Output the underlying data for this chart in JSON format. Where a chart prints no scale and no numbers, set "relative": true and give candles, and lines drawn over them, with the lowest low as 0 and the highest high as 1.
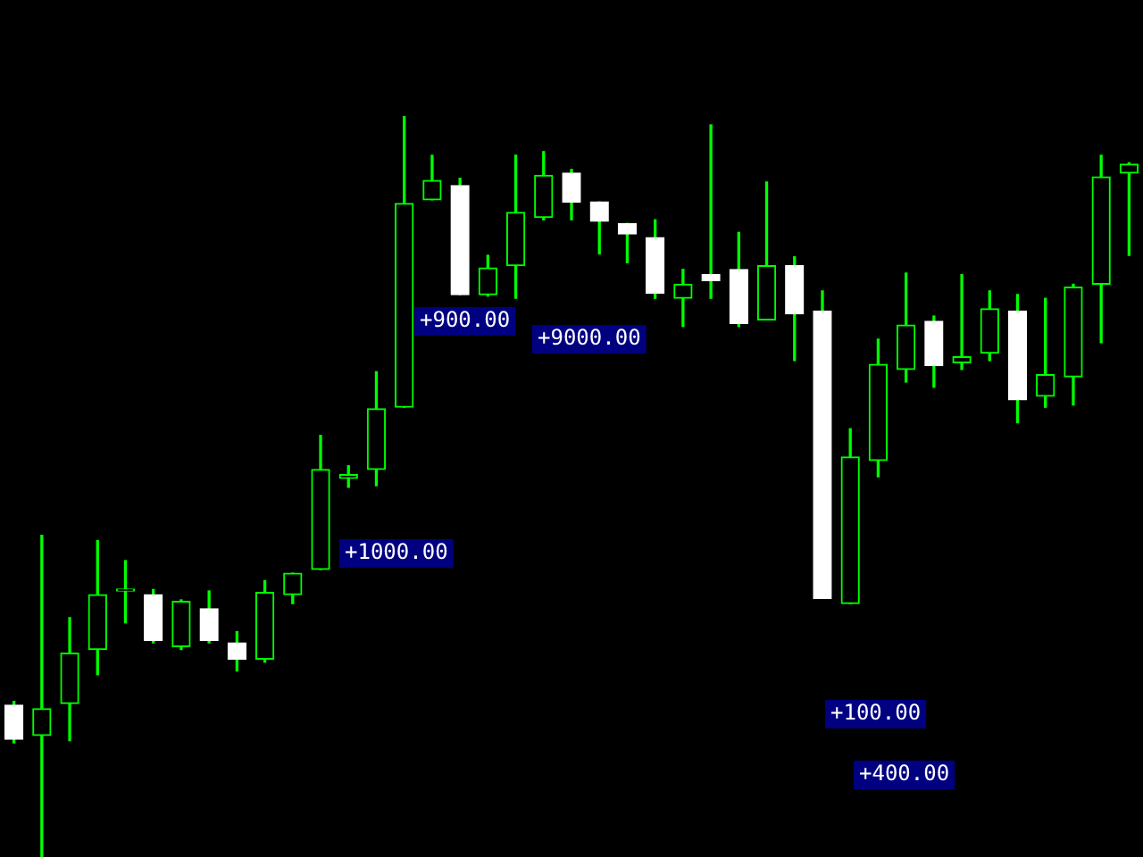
{
  "chart_data": {
    "type": "candlestick",
    "relative": true,
    "color": "#00ff00",
    "categories": [
      null,
      null,
      null,
      null,
      null,
      null,
      null,
      null,
      null,
      null,
      null,
      null,
      null,
      null,
      null,
      null,
      null,
      null,
      null,
      null,
      null,
      null,
      null,
      null,
      null,
      null,
      null,
      null,
      null,
      null,
      null,
      null,
      null,
      null,
      null,
      null,
      null,
      null,
      null,
      null,
      null
    ],
    "ohlc": [
      [
        0.205,
        0.21,
        0.154,
        0.159
      ],
      [
        0.164,
        0.434,
        0,
        0.2
      ],
      [
        0.207,
        0.323,
        0.157,
        0.275
      ],
      [
        0.28,
        0.427,
        0.246,
        0.354
      ],
      [
        0.359,
        0.4,
        0.316,
        0.359
      ],
      [
        0.354,
        0.361,
        0.289,
        0.292
      ],
      [
        0.284,
        0.347,
        0.28,
        0.345
      ],
      [
        0.335,
        0.359,
        0.289,
        0.292
      ],
      [
        0.289,
        0.304,
        0.251,
        0.267
      ],
      [
        0.267,
        0.373,
        0.263,
        0.357
      ],
      [
        0.354,
        0.383,
        0.342,
        0.383
      ],
      [
        0.388,
        0.569,
        0.388,
        0.523
      ],
      [
        0.511,
        0.528,
        0.499,
        0.516
      ],
      [
        0.523,
        0.655,
        0.501,
        0.605
      ],
      [
        0.607,
        1,
        0.607,
        0.882
      ],
      [
        0.887,
        0.947,
        0.887,
        0.913
      ],
      [
        0.906,
        0.916,
        0.759,
        0.759
      ],
      [
        0.759,
        0.812,
        0.757,
        0.795
      ],
      [
        0.798,
        0.947,
        0.754,
        0.87
      ],
      [
        0.863,
        0.952,
        0.86,
        0.92
      ],
      [
        0.923,
        0.928,
        0.86,
        0.884
      ],
      [
        0.884,
        0.884,
        0.814,
        0.858
      ],
      [
        0.855,
        0.855,
        0.802,
        0.841
      ],
      [
        0.836,
        0.86,
        0.754,
        0.761
      ],
      [
        0.754,
        0.793,
        0.716,
        0.773
      ],
      [
        0.786,
        0.988,
        0.754,
        0.778
      ],
      [
        0.793,
        0.843,
        0.716,
        0.72
      ],
      [
        0.725,
        0.911,
        0.725,
        0.798
      ],
      [
        0.798,
        0.81,
        0.67,
        0.733
      ],
      [
        0.737,
        0.764,
        0.349,
        0.349
      ],
      [
        0.342,
        0.578,
        0.342,
        0.54
      ],
      [
        0.535,
        0.699,
        0.513,
        0.665
      ],
      [
        0.658,
        0.788,
        0.641,
        0.718
      ],
      [
        0.723,
        0.73,
        0.634,
        0.663
      ],
      [
        0.667,
        0.786,
        0.658,
        0.675
      ],
      [
        0.68,
        0.764,
        0.67,
        0.74
      ],
      [
        0.737,
        0.759,
        0.586,
        0.617
      ],
      [
        0.622,
        0.754,
        0.607,
        0.651
      ],
      [
        0.648,
        0.773,
        0.61,
        0.769
      ],
      [
        0.773,
        0.947,
        0.694,
        0.918
      ],
      [
        0.923,
        0.937,
        0.812,
        0.935
      ]
    ],
    "colors": [
      "#ffffff",
      "#00ff00",
      "#00ff00",
      "#00ff00",
      "#00ff00",
      "#ffffff",
      "#00ff00",
      "#ffffff",
      "#ffffff",
      "#00ff00",
      "#00ff00",
      "#00ff00",
      "#00ff00",
      "#00ff00",
      "#00ff00",
      "#00ff00",
      "#ffffff",
      "#00ff00",
      "#00ff00",
      "#00ff00",
      "#ffffff",
      "#ffffff",
      "#ffffff",
      "#ffffff",
      "#00ff00",
      "#ffffff",
      "#ffffff",
      "#00ff00",
      "#ffffff",
      "#ffffff",
      "#00ff00",
      "#00ff00",
      "#00ff00",
      "#ffffff",
      "#00ff00",
      "#00ff00",
      "#ffffff",
      "#00ff00",
      "#00ff00",
      "#00ff00",
      "#00ff00"
    ],
    "annotations": [
      "+900.00",
      "+9000.00",
      "+1000.00",
      "+100.00",
      "+400.00"
    ],
    "legend": false
  }
}
